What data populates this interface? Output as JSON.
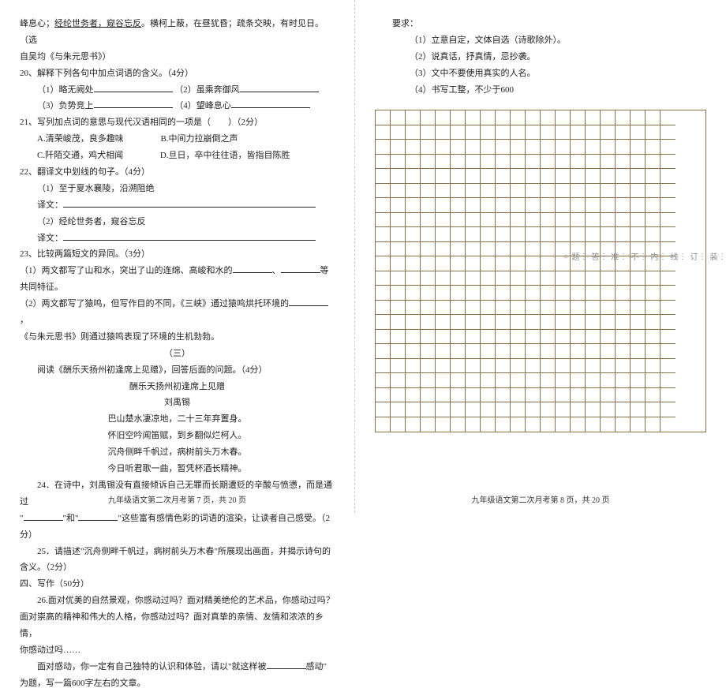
{
  "left": {
    "l1": "峰息心；经纶世务者，窥谷忘反。横柯上蔽，在昼犹昏；疏条交映，有时见日。（选",
    "l1u": "经纶世务者，窥谷忘反",
    "l2": "自吴均《与朱元思书》）",
    "q20": "20、解释下列各句中加点词语的含义。（4分）",
    "q20_1a": "（1）略无阙处",
    "q20_1b": "（2）虽乘奔御风",
    "q20_2a": "（3）负势竞上",
    "q20_2b": "（4）望峰息心",
    "q21": "21、写列加点词的意思与现代汉语相同的一项是（　　）（2分）",
    "q21a": "A.清荣峻茂，良多趣味",
    "q21b": "B.中间力拉崩倒之声",
    "q21c": "C.阡陌交通，鸡犬相闻",
    "q21d": "D.旦日，卒中往往语，皆指目陈胜",
    "q22": "22、翻译文中划线的句子。（4分）",
    "q22_1": "（1）至于夏水襄陵，沿溯阻绝",
    "q22_t": "译文：",
    "q22_2": "（2）经纶世务者，窥谷忘反",
    "q23": "23、比较两篇短文的异同。（3分）",
    "q23_1a": "（1）两文都写了山和水，突出了山的连绵、高峻和水的",
    "q23_1b": "、",
    "q23_1c": "等共同特征。",
    "q23_2a": "（2）两文都写了猿鸣，但写作目的不同，《三峡》通过猿鸣烘托环境的",
    "q23_2b": "，",
    "q23_3": "《与朱元思书》则通过猿鸣表现了环境的生机勃勃。",
    "section3": "（三）",
    "read": "阅读《酬乐天扬州初逢席上见赠》，回答后面的问题。（4分）",
    "poem_title": "酬乐天扬州初逢席上见赠",
    "poem_author": "刘禹锡",
    "poem1": "巴山楚水凄凉地，二十三年弃置身。",
    "poem2": "怀旧空吟闻笛赋，到乡翻似烂柯人。",
    "poem3": "沉舟侧畔千帆过，病树前头万木春。",
    "poem4": "今日听君歌一曲，暂凭杯酒长精神。",
    "q24a": "　　24．在诗中，刘禹锡没有直接倾诉自己无罪而长期遭贬的辛酸与愤懑，而是通过",
    "q24b": "\"",
    "q24c": "\"和\"",
    "q24d": "\"这些富有感情色彩的词语的渲染，让读者自己感受。（2",
    "q24e": "分）",
    "q25a": "　　25．请描述\"沉舟侧畔千帆过，病树前头万木春\"所展现出画面，并揭示诗句的",
    "q25b": "含义。（2分）",
    "h4": "四、写作（50分）",
    "q26a": "　　26.面对优美的自然景观，你感动过吗？面对精美绝伦的艺术品，你感动过吗？",
    "q26b": "面对崇高的精神和伟大的人格，你感动过吗？面对真挚的亲情、友情和浓浓的乡情，",
    "q26c": "你感动过吗……",
    "q26d": "　　面对感动，你一定有自己独特的认识和体验，请以\"就这样被",
    "q26e": "感动\"",
    "q26f": "为题，写一篇600字左右的文章。",
    "footer": "九年级语文第二次月考第 7 页，共 20 页"
  },
  "right": {
    "req": "要求：",
    "r1": "（1）立意自定，文体自选（诗歌除外）。",
    "r2": "（2）说真话，抒真情，忌抄袭。",
    "r3": "（3）文中不要使用真实的人名。",
    "r4": "（4）书写工整，不少于600",
    "footer": "九年级语文第二次月考第 8 页，共 20 页",
    "grid": {
      "rows": 22,
      "cols": 20,
      "border_color": "#8b6f4a"
    }
  },
  "binding": [
    "装",
    "订",
    "线",
    "内",
    "不",
    "准",
    "答",
    "题"
  ]
}
